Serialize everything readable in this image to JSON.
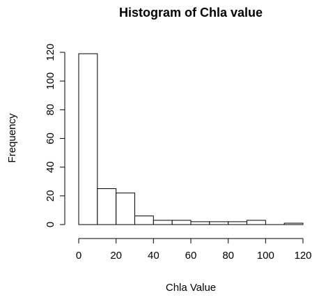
{
  "chart_data": {
    "type": "histogram",
    "title": "Histogram of Chla value",
    "x_label": "Chla Value",
    "y_label": "Frequency",
    "bins": [
      0,
      10,
      20,
      30,
      40,
      50,
      60,
      70,
      80,
      90,
      100,
      110,
      120
    ],
    "values": [
      119,
      25,
      22,
      6,
      3,
      3,
      2,
      2,
      2,
      3,
      0,
      1
    ],
    "color": "#ffffff",
    "xlim": [
      0,
      120
    ],
    "xticks": [
      0,
      20,
      40,
      60,
      80,
      100,
      120
    ],
    "ylim": [
      0,
      120
    ],
    "yticks": [
      0,
      20,
      40,
      60,
      80,
      100,
      120
    ]
  }
}
